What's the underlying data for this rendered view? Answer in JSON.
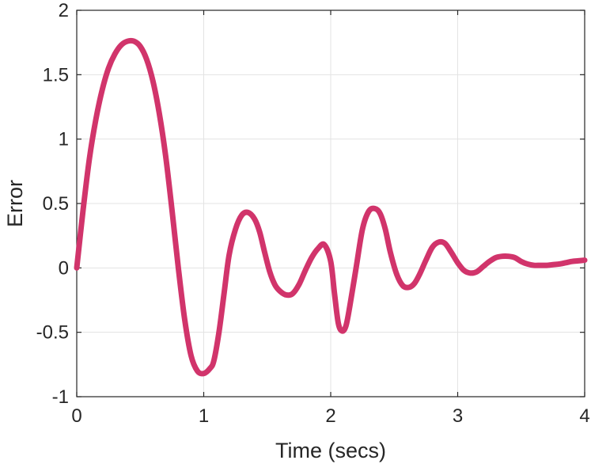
{
  "chart_data": {
    "type": "line",
    "title": "",
    "xlabel": "Time (secs)",
    "ylabel": "Error",
    "xlim": [
      0,
      4
    ],
    "ylim": [
      -1,
      2
    ],
    "xticks": [
      0,
      1,
      2,
      3,
      4
    ],
    "xtick_labels": [
      "0",
      "1",
      "2",
      "3",
      "4"
    ],
    "yticks": [
      -1,
      -0.5,
      0,
      0.5,
      1,
      1.5,
      2
    ],
    "ytick_labels": [
      "-1",
      "-0.5",
      "0",
      "0.5",
      "1",
      "1.5",
      "2"
    ],
    "grid": true,
    "legend": "none",
    "series": [
      {
        "color": "#d1346b",
        "x": [
          0,
          0.05,
          0.1,
          0.15,
          0.2,
          0.25,
          0.3,
          0.35,
          0.4,
          0.45,
          0.5,
          0.55,
          0.6,
          0.65,
          0.7,
          0.75,
          0.8,
          0.85,
          0.9,
          0.95,
          1.0,
          1.05,
          1.08,
          1.12,
          1.16,
          1.2,
          1.25,
          1.3,
          1.35,
          1.4,
          1.44,
          1.48,
          1.52,
          1.56,
          1.6,
          1.65,
          1.7,
          1.75,
          1.8,
          1.85,
          1.9,
          1.95,
          2.0,
          2.03,
          2.06,
          2.09,
          2.12,
          2.15,
          2.2,
          2.25,
          2.3,
          2.35,
          2.39,
          2.43,
          2.47,
          2.52,
          2.57,
          2.62,
          2.66,
          2.7,
          2.75,
          2.8,
          2.85,
          2.9,
          2.95,
          3.0,
          3.05,
          3.1,
          3.15,
          3.2,
          3.25,
          3.3,
          3.35,
          3.4,
          3.45,
          3.5,
          3.55,
          3.6,
          3.65,
          3.7,
          3.75,
          3.8,
          3.85,
          3.9,
          3.95,
          4.0
        ],
        "y": [
          0.0,
          0.45,
          0.85,
          1.15,
          1.38,
          1.55,
          1.66,
          1.73,
          1.76,
          1.76,
          1.72,
          1.62,
          1.45,
          1.2,
          0.87,
          0.45,
          0.0,
          -0.4,
          -0.68,
          -0.8,
          -0.82,
          -0.78,
          -0.72,
          -0.5,
          -0.2,
          0.1,
          0.3,
          0.41,
          0.43,
          0.38,
          0.28,
          0.12,
          -0.03,
          -0.13,
          -0.18,
          -0.21,
          -0.2,
          -0.13,
          -0.02,
          0.08,
          0.15,
          0.18,
          0.05,
          -0.2,
          -0.43,
          -0.49,
          -0.45,
          -0.3,
          0.0,
          0.3,
          0.44,
          0.46,
          0.42,
          0.3,
          0.12,
          -0.05,
          -0.14,
          -0.15,
          -0.12,
          -0.05,
          0.06,
          0.16,
          0.2,
          0.19,
          0.12,
          0.04,
          -0.02,
          -0.04,
          -0.03,
          0.01,
          0.05,
          0.08,
          0.09,
          0.09,
          0.08,
          0.05,
          0.03,
          0.02,
          0.02,
          0.02,
          0.025,
          0.03,
          0.04,
          0.05,
          0.055,
          0.06
        ]
      }
    ]
  }
}
